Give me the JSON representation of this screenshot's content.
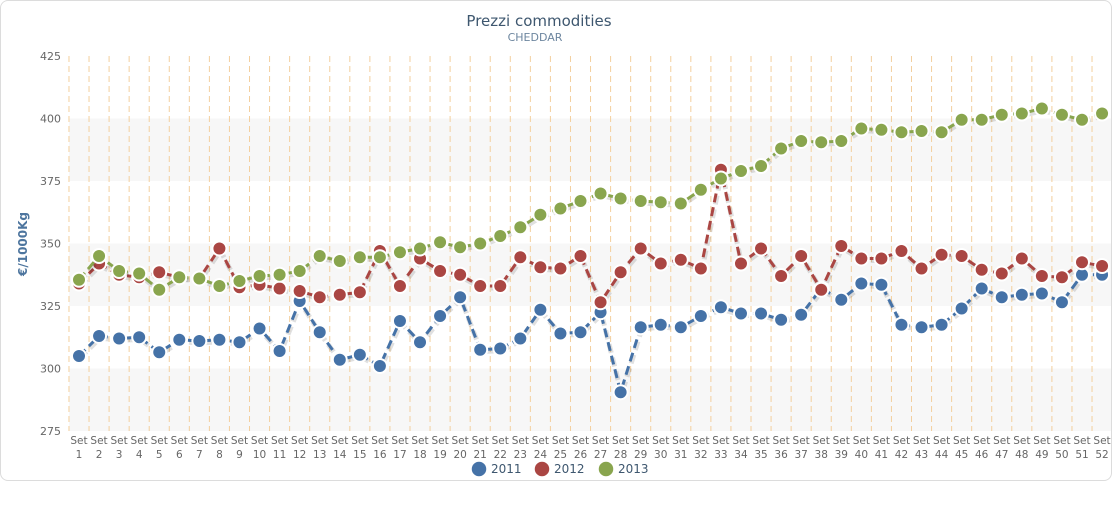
{
  "chart_data": {
    "type": "line",
    "title": "Prezzi commodities",
    "subtitle": "CHEDDAR",
    "ylabel": "€/1000Kg",
    "xlabel": "",
    "ylim": [
      275,
      425
    ],
    "yticks": [
      275,
      300,
      325,
      350,
      375,
      400,
      425
    ],
    "x_prefix": "Set",
    "x": [
      1,
      2,
      3,
      4,
      5,
      6,
      7,
      8,
      9,
      10,
      11,
      12,
      13,
      14,
      15,
      16,
      17,
      18,
      19,
      20,
      21,
      22,
      23,
      24,
      25,
      26,
      27,
      28,
      29,
      30,
      31,
      32,
      33,
      34,
      35,
      36,
      37,
      38,
      39,
      40,
      41,
      42,
      43,
      44,
      45,
      46,
      47,
      48,
      49,
      50,
      51,
      52
    ],
    "grid": true,
    "legend": "bottom-center",
    "series": [
      {
        "name": "2011",
        "color": "#4572a7",
        "values": [
          305,
          313,
          312,
          312.5,
          306.5,
          311.5,
          311,
          311.5,
          310.5,
          316,
          307,
          327,
          314.5,
          303.5,
          305.5,
          301,
          319,
          310.5,
          321,
          328.5,
          307.5,
          308,
          312,
          323.5,
          314,
          314.5,
          322.5,
          290.5,
          316.5,
          317.5,
          316.5,
          321,
          324.5,
          322,
          322,
          319.5,
          321.5,
          332,
          327.5,
          334,
          333.5,
          317.5,
          316.5,
          317.5,
          324,
          332,
          328.5,
          329.5,
          330,
          326.5,
          337.5,
          337.5
        ]
      },
      {
        "name": "2012",
        "color": "#aa4643",
        "values": [
          334,
          342,
          337.5,
          336.5,
          338.5,
          336.5,
          336,
          348,
          332.5,
          333.5,
          332,
          331,
          328.5,
          329.5,
          330.5,
          347,
          333,
          344,
          339,
          337.5,
          333,
          333,
          344.5,
          340.5,
          340,
          345,
          326.5,
          338.5,
          348,
          342,
          343.5,
          340,
          379.5,
          342,
          348,
          337,
          345,
          331.5,
          349,
          344,
          344,
          347,
          340,
          345.5,
          345,
          339.5,
          338,
          344,
          337,
          336.5,
          342.5,
          341
        ]
      },
      {
        "name": "2013",
        "color": "#89a54e",
        "values": [
          335.5,
          345,
          339,
          338,
          331.5,
          336.5,
          336,
          333,
          335,
          337,
          337.5,
          339,
          345,
          343,
          344.5,
          344.5,
          346.5,
          348,
          350.5,
          348.5,
          350,
          353,
          356.5,
          361.5,
          364,
          367,
          370,
          368,
          367,
          366.5,
          366,
          371.5,
          376,
          379,
          381,
          388,
          391,
          390.5,
          391,
          396,
          395.5,
          394.5,
          395,
          394.5,
          399.5,
          399.5,
          401.5,
          402,
          404,
          401.5,
          399.5,
          402
        ]
      }
    ]
  }
}
